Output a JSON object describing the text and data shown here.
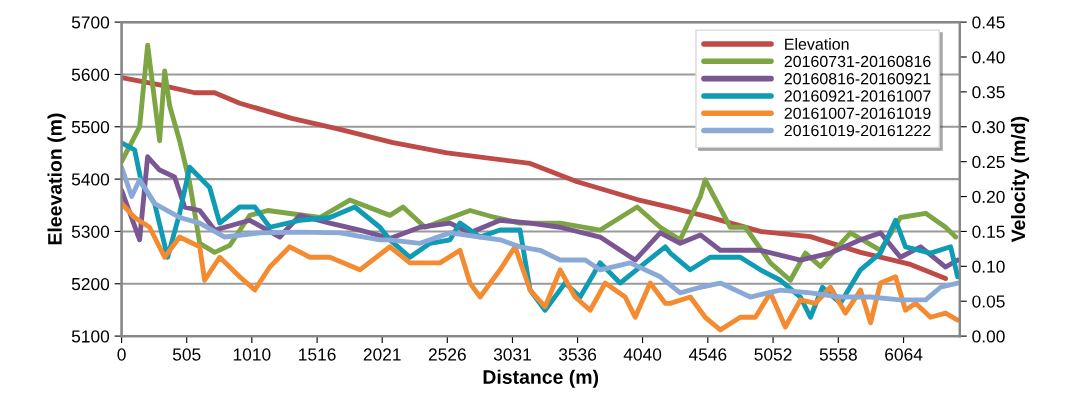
{
  "chart_data": {
    "type": "line",
    "xlabel": "Distance (m)",
    "ylabel": "Eleevation (m)",
    "y2label": "Velocity (m/d)",
    "xlim": [
      0,
      6500
    ],
    "xticks": [
      0,
      505,
      1010,
      1516,
      2021,
      2526,
      3031,
      3536,
      4040,
      4546,
      5052,
      5558,
      6064
    ],
    "ylim": [
      5100,
      5700
    ],
    "yticks": [
      5100,
      5200,
      5300,
      5400,
      5500,
      5600,
      5700
    ],
    "y2lim": [
      0,
      0.45
    ],
    "y2ticks": [
      {
        "value": 0,
        "label": "0.00"
      },
      {
        "value": 0.05,
        "label": "0.05"
      },
      {
        "value": 0.1,
        "label": "0.10"
      },
      {
        "value": 0.15,
        "label": "0.15"
      },
      {
        "value": 0.2,
        "label": "0.20"
      },
      {
        "value": 0.25,
        "label": "0.25"
      },
      {
        "value": 0.3,
        "label": "0.30"
      },
      {
        "value": 0.35,
        "label": "0.35"
      },
      {
        "value": 0.4,
        "label": "0.40"
      },
      {
        "value": 0.45,
        "label": "0.45"
      }
    ],
    "grid": "y",
    "legend": "top right",
    "marker": "none",
    "line_style": "solid",
    "series": [
      {
        "name": "Elevation",
        "color": "#be4b48",
        "x": [
          0,
          295,
          567,
          722,
          916,
          1320,
          1693,
          2096,
          2523,
          3168,
          3533,
          3998,
          4255,
          4565,
          4953,
          5342,
          5730,
          6118,
          6390
        ],
        "values": [
          5594,
          5580,
          5565,
          5565,
          5545,
          5516,
          5495,
          5470,
          5450,
          5430,
          5395,
          5361,
          5346,
          5327,
          5300,
          5290,
          5260,
          5237,
          5210
        ]
      },
      {
        "name": "20160731-20160816",
        "color": "#7ea543",
        "axis": "y2",
        "x": [
          0,
          140,
          202,
          295,
          334,
          373,
          450,
          528,
          606,
          722,
          839,
          994,
          1134,
          1537,
          1770,
          2081,
          2182,
          2353,
          2702,
          2896,
          3090,
          3401,
          3711,
          3998,
          4177,
          4332,
          4488,
          4526,
          4720,
          4837,
          5031,
          5186,
          5303,
          5419,
          5652,
          5885,
          6040,
          6235,
          6390,
          6468
        ],
        "values": [
          0.25,
          0.3,
          0.417,
          0.28,
          0.38,
          0.33,
          0.28,
          0.22,
          0.133,
          0.12,
          0.13,
          0.173,
          0.18,
          0.17,
          0.195,
          0.173,
          0.185,
          0.156,
          0.18,
          0.17,
          0.162,
          0.162,
          0.152,
          0.185,
          0.156,
          0.138,
          0.2,
          0.224,
          0.156,
          0.156,
          0.105,
          0.08,
          0.119,
          0.1,
          0.148,
          0.123,
          0.17,
          0.176,
          0.156,
          0.142
        ]
      },
      {
        "name": "20160816-20160921",
        "color": "#7a5793",
        "axis": "y2",
        "x": [
          0,
          140,
          202,
          295,
          411,
          489,
          606,
          722,
          994,
          1227,
          1382,
          1615,
          1848,
          2081,
          2314,
          2547,
          2702,
          2935,
          3168,
          3401,
          3711,
          3983,
          4177,
          4332,
          4488,
          4643,
          4953,
          5264,
          5497,
          5730,
          5885,
          6040,
          6196,
          6390,
          6483
        ],
        "values": [
          0.209,
          0.138,
          0.257,
          0.238,
          0.228,
          0.185,
          0.18,
          0.152,
          0.166,
          0.142,
          0.173,
          0.162,
          0.152,
          0.14,
          0.156,
          0.162,
          0.148,
          0.166,
          0.162,
          0.156,
          0.142,
          0.109,
          0.148,
          0.133,
          0.145,
          0.123,
          0.123,
          0.109,
          0.119,
          0.138,
          0.148,
          0.113,
          0.128,
          0.099,
          0.109
        ]
      },
      {
        "name": "20160921-20161007",
        "color": "#0e9bb3",
        "axis": "y2",
        "x": [
          0,
          101,
          155,
          256,
          357,
          450,
          528,
          683,
          761,
          916,
          1033,
          1149,
          1382,
          1615,
          1809,
          2003,
          2081,
          2236,
          2391,
          2547,
          2624,
          2780,
          2935,
          3090,
          3168,
          3284,
          3439,
          3556,
          3711,
          3866,
          4060,
          4216,
          4255,
          4410,
          4565,
          4798,
          4953,
          5109,
          5264,
          5342,
          5435,
          5574,
          5730,
          5885,
          6002,
          6079,
          6273,
          6429,
          6483
        ],
        "values": [
          0.277,
          0.267,
          0.219,
          0.19,
          0.113,
          0.176,
          0.242,
          0.213,
          0.162,
          0.185,
          0.185,
          0.156,
          0.166,
          0.17,
          0.185,
          0.156,
          0.138,
          0.113,
          0.133,
          0.138,
          0.162,
          0.142,
          0.152,
          0.152,
          0.066,
          0.037,
          0.076,
          0.056,
          0.105,
          0.076,
          0.105,
          0.128,
          0.119,
          0.095,
          0.113,
          0.113,
          0.095,
          0.08,
          0.056,
          0.027,
          0.07,
          0.047,
          0.095,
          0.119,
          0.166,
          0.128,
          0.119,
          0.128,
          0.085
        ]
      },
      {
        "name": "20161007-20161019",
        "color": "#f48b31",
        "axis": "y2",
        "x": [
          0,
          101,
          217,
          334,
          450,
          606,
          644,
          761,
          916,
          1033,
          1149,
          1304,
          1460,
          1615,
          1848,
          2081,
          2236,
          2469,
          2624,
          2702,
          2780,
          2935,
          3051,
          3168,
          3284,
          3401,
          3517,
          3634,
          3750,
          3905,
          3983,
          4099,
          4216,
          4255,
          4410,
          4526,
          4643,
          4798,
          4915,
          5031,
          5147,
          5264,
          5380,
          5497,
          5613,
          5730,
          5808,
          5885,
          6002,
          6079,
          6157,
          6273,
          6390,
          6483
        ],
        "values": [
          0.19,
          0.17,
          0.156,
          0.113,
          0.142,
          0.128,
          0.08,
          0.113,
          0.085,
          0.066,
          0.099,
          0.128,
          0.113,
          0.113,
          0.095,
          0.128,
          0.105,
          0.105,
          0.123,
          0.076,
          0.056,
          0.095,
          0.128,
          0.066,
          0.042,
          0.095,
          0.056,
          0.037,
          0.076,
          0.056,
          0.027,
          0.076,
          0.047,
          0.047,
          0.056,
          0.027,
          0.009,
          0.027,
          0.027,
          0.062,
          0.013,
          0.052,
          0.047,
          0.07,
          0.033,
          0.066,
          0.019,
          0.076,
          0.085,
          0.037,
          0.047,
          0.027,
          0.033,
          0.023
        ]
      },
      {
        "name": "20161019-20161222",
        "color": "#8aa9d6",
        "axis": "y2",
        "x": [
          0,
          78,
          140,
          256,
          450,
          606,
          800,
          1071,
          1382,
          1693,
          2003,
          2081,
          2314,
          2547,
          2780,
          2935,
          3090,
          3245,
          3401,
          3595,
          3711,
          3944,
          4177,
          4332,
          4488,
          4643,
          4876,
          5109,
          5342,
          5574,
          5808,
          6040,
          6235,
          6351,
          6483
        ],
        "values": [
          0.242,
          0.2,
          0.224,
          0.19,
          0.17,
          0.162,
          0.142,
          0.148,
          0.149,
          0.148,
          0.138,
          0.138,
          0.133,
          0.148,
          0.142,
          0.138,
          0.128,
          0.123,
          0.109,
          0.109,
          0.095,
          0.105,
          0.085,
          0.062,
          0.07,
          0.076,
          0.056,
          0.066,
          0.062,
          0.056,
          0.056,
          0.052,
          0.052,
          0.07,
          0.076
        ]
      }
    ]
  }
}
